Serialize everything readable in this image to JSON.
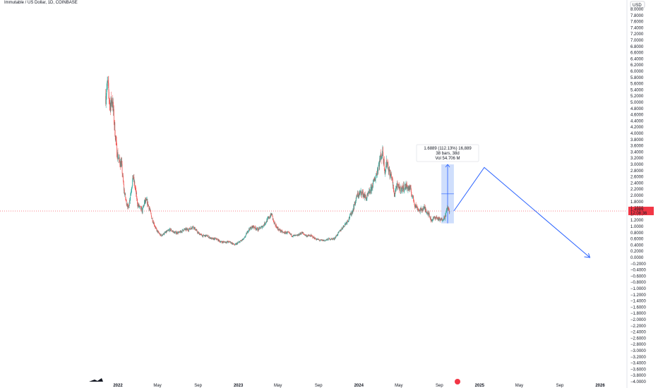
{
  "title": "Immutable / US Dollar, 1D, COINBASE",
  "price_label": "1.4989",
  "price_time": "12:08:36",
  "currency": "USD",
  "colors": {
    "up": "#26a69a",
    "down": "#ef5350",
    "drawing": "#2962ff",
    "measure_fill": "#bbd0fb",
    "last_price": "#f23645",
    "axis_text": "#131722"
  },
  "measure": {
    "line1": "1.6889 (112.13%) 16,889",
    "line2": "38 bars, 38d",
    "line3": "Vol 54.706 M"
  },
  "chart_data": {
    "type": "candlestick",
    "title": "Immutable / US Dollar, 1D, COINBASE",
    "ylim": [
      -4.0,
      8.0
    ],
    "y_ticks": [
      "8.0000",
      "7.8000",
      "7.6000",
      "7.4000",
      "7.2000",
      "7.0000",
      "6.8000",
      "6.6000",
      "6.4000",
      "6.2000",
      "6.0000",
      "5.8000",
      "5.6000",
      "5.4000",
      "5.2000",
      "5.0000",
      "4.8000",
      "4.6000",
      "4.4000",
      "4.2000",
      "4.0000",
      "3.8000",
      "3.6000",
      "3.4000",
      "3.2000",
      "3.0000",
      "2.8000",
      "2.6000",
      "2.4000",
      "2.2000",
      "2.0000",
      "1.8000",
      "1.6000",
      "1.4000",
      "1.2000",
      "1.0000",
      "0.8000",
      "0.6000",
      "0.4000",
      "0.2000",
      "0.0000",
      "−0.2000",
      "−0.4000",
      "−0.6000",
      "−0.8000",
      "−1.0000",
      "−1.2000",
      "−1.4000",
      "−1.6000",
      "−1.8000",
      "−2.0000",
      "−2.2000",
      "−2.4000",
      "−2.6000",
      "−2.8000",
      "−3.0000",
      "−3.2000",
      "−3.4000",
      "−3.6000",
      "−3.8000",
      "−4.0000"
    ],
    "x_labels": [
      {
        "label": "2022",
        "bold": true
      },
      {
        "label": "May",
        "bold": false
      },
      {
        "label": "Sep",
        "bold": false
      },
      {
        "label": "2023",
        "bold": true
      },
      {
        "label": "May",
        "bold": false
      },
      {
        "label": "Sep",
        "bold": false
      },
      {
        "label": "2024",
        "bold": true
      },
      {
        "label": "May",
        "bold": false
      },
      {
        "label": "Sep",
        "bold": false
      },
      {
        "label": "2025",
        "bold": true
      },
      {
        "label": "May",
        "bold": false
      },
      {
        "label": "Sep",
        "bold": false
      },
      {
        "label": "2026",
        "bold": true
      }
    ],
    "price_path": [
      [
        "2021-11-25",
        5.2
      ],
      [
        "2021-12-01",
        5.6
      ],
      [
        "2021-12-08",
        4.9
      ],
      [
        "2021-12-15",
        5.1
      ],
      [
        "2021-12-22",
        4.2
      ],
      [
        "2021-12-29",
        3.4
      ],
      [
        "2022-01-05",
        3.1
      ],
      [
        "2022-01-12",
        3.0
      ],
      [
        "2022-01-19",
        2.2
      ],
      [
        "2022-01-26",
        1.8
      ],
      [
        "2022-02-02",
        1.6
      ],
      [
        "2022-02-09",
        2.1
      ],
      [
        "2022-02-16",
        2.6
      ],
      [
        "2022-02-23",
        2.2
      ],
      [
        "2022-03-02",
        1.7
      ],
      [
        "2022-03-09",
        1.6
      ],
      [
        "2022-03-16",
        1.5
      ],
      [
        "2022-03-23",
        1.8
      ],
      [
        "2022-03-30",
        1.8
      ],
      [
        "2022-04-06",
        1.6
      ],
      [
        "2022-04-13",
        1.3
      ],
      [
        "2022-04-20",
        1.1
      ],
      [
        "2022-04-27",
        0.9
      ],
      [
        "2022-05-11",
        0.7
      ],
      [
        "2022-05-25",
        0.8
      ],
      [
        "2022-06-08",
        0.9
      ],
      [
        "2022-06-22",
        0.8
      ],
      [
        "2022-07-06",
        0.8
      ],
      [
        "2022-07-20",
        0.9
      ],
      [
        "2022-08-03",
        0.9
      ],
      [
        "2022-08-17",
        1.0
      ],
      [
        "2022-08-31",
        0.8
      ],
      [
        "2022-09-14",
        0.7
      ],
      [
        "2022-09-28",
        0.7
      ],
      [
        "2022-10-12",
        0.6
      ],
      [
        "2022-10-26",
        0.6
      ],
      [
        "2022-11-09",
        0.5
      ],
      [
        "2022-11-23",
        0.5
      ],
      [
        "2022-12-07",
        0.5
      ],
      [
        "2022-12-21",
        0.4
      ],
      [
        "2023-01-04",
        0.5
      ],
      [
        "2023-01-18",
        0.6
      ],
      [
        "2023-02-01",
        0.9
      ],
      [
        "2023-02-15",
        1.0
      ],
      [
        "2023-03-01",
        0.9
      ],
      [
        "2023-03-15",
        1.0
      ],
      [
        "2023-03-29",
        1.2
      ],
      [
        "2023-04-12",
        1.4
      ],
      [
        "2023-04-19",
        1.1
      ],
      [
        "2023-05-03",
        0.9
      ],
      [
        "2023-05-17",
        0.8
      ],
      [
        "2023-05-31",
        0.8
      ],
      [
        "2023-06-14",
        0.7
      ],
      [
        "2023-06-28",
        0.7
      ],
      [
        "2023-07-12",
        0.8
      ],
      [
        "2023-07-26",
        0.7
      ],
      [
        "2023-08-09",
        0.7
      ],
      [
        "2023-08-23",
        0.6
      ],
      [
        "2023-09-06",
        0.55
      ],
      [
        "2023-09-20",
        0.55
      ],
      [
        "2023-10-04",
        0.6
      ],
      [
        "2023-10-18",
        0.6
      ],
      [
        "2023-11-01",
        0.8
      ],
      [
        "2023-11-15",
        1.0
      ],
      [
        "2023-11-29",
        1.2
      ],
      [
        "2023-12-13",
        1.5
      ],
      [
        "2023-12-27",
        2.0
      ],
      [
        "2024-01-10",
        2.1
      ],
      [
        "2024-01-24",
        1.9
      ],
      [
        "2024-02-07",
        2.2
      ],
      [
        "2024-02-21",
        2.6
      ],
      [
        "2024-03-06",
        3.2
      ],
      [
        "2024-03-13",
        3.4
      ],
      [
        "2024-03-20",
        2.8
      ],
      [
        "2024-03-27",
        3.1
      ],
      [
        "2024-04-03",
        2.7
      ],
      [
        "2024-04-10",
        2.6
      ],
      [
        "2024-04-17",
        2.0
      ],
      [
        "2024-04-24",
        2.3
      ],
      [
        "2024-05-08",
        2.2
      ],
      [
        "2024-05-22",
        2.3
      ],
      [
        "2024-06-05",
        2.2
      ],
      [
        "2024-06-19",
        1.7
      ],
      [
        "2024-07-03",
        1.5
      ],
      [
        "2024-07-17",
        1.6
      ],
      [
        "2024-07-31",
        1.4
      ],
      [
        "2024-08-07",
        1.2
      ],
      [
        "2024-08-21",
        1.3
      ],
      [
        "2024-09-04",
        1.2
      ],
      [
        "2024-09-18",
        1.3
      ],
      [
        "2024-09-25",
        1.6
      ],
      [
        "2024-10-02",
        1.5
      ]
    ],
    "last_price": 1.4989,
    "measure": {
      "from": [
        "2024-09-07",
        1.1
      ],
      "to": [
        "2024-10-15",
        3.0
      ],
      "change": "1.6889 (112.13%) 16,889",
      "bars": "38 bars, 38d",
      "vol": "Vol 54.706 M"
    },
    "projection": [
      [
        "2024-10-15",
        1.5
      ],
      [
        "2025-01-15",
        2.9
      ],
      [
        "2025-12-01",
        0.0
      ]
    ]
  }
}
